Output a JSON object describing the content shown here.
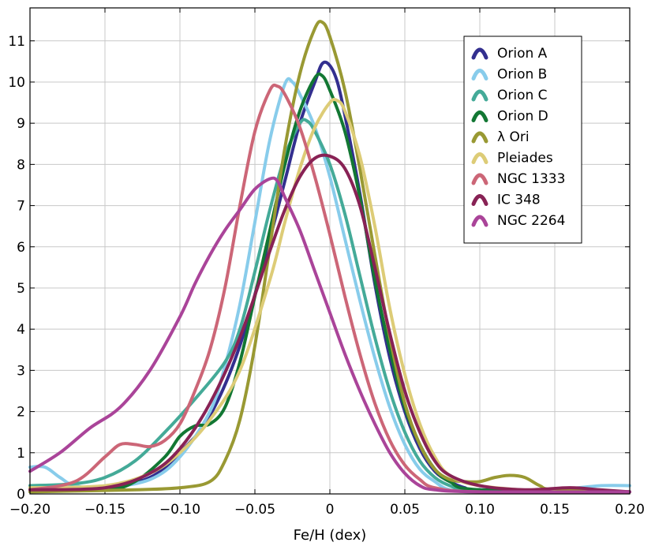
{
  "chart_data": {
    "type": "line",
    "title": "",
    "xlabel": "Fe/H (dex)",
    "ylabel": "",
    "xlim": [
      -0.2,
      0.2
    ],
    "ylim": [
      0,
      11.8
    ],
    "grid": true,
    "legend_position": "top-right",
    "x_ticks": [
      -0.2,
      -0.15,
      -0.1,
      -0.05,
      0,
      0.05,
      0.1,
      0.15,
      0.2
    ],
    "x_tick_labels": [
      "−0.20",
      "−0.15",
      "−0.10",
      "−0.05",
      "0",
      "0.05",
      "0.10",
      "0.15",
      "0.20"
    ],
    "y_ticks": [
      0,
      1,
      2,
      3,
      4,
      5,
      6,
      7,
      8,
      9,
      10,
      11
    ],
    "y_tick_labels": [
      "0",
      "1",
      "2",
      "3",
      "4",
      "5",
      "6",
      "7",
      "8",
      "9",
      "10",
      "11"
    ],
    "series": [
      {
        "name": "Orion A",
        "color": "#332f8f",
        "points": [
          [
            -0.2,
            0.15
          ],
          [
            -0.15,
            0.15
          ],
          [
            -0.12,
            0.4
          ],
          [
            -0.1,
            1.0
          ],
          [
            -0.08,
            1.9
          ],
          [
            -0.06,
            3.6
          ],
          [
            -0.04,
            6.2
          ],
          [
            -0.03,
            7.6
          ],
          [
            -0.02,
            9.0
          ],
          [
            -0.01,
            10.0
          ],
          [
            -0.005,
            10.45
          ],
          [
            0,
            10.4
          ],
          [
            0.005,
            10.0
          ],
          [
            0.01,
            9.2
          ],
          [
            0.02,
            7.3
          ],
          [
            0.03,
            5.1
          ],
          [
            0.04,
            3.3
          ],
          [
            0.05,
            2.0
          ],
          [
            0.06,
            1.1
          ],
          [
            0.07,
            0.55
          ],
          [
            0.08,
            0.3
          ],
          [
            0.09,
            0.15
          ],
          [
            0.1,
            0.1
          ],
          [
            0.2,
            0.05
          ]
        ]
      },
      {
        "name": "Orion B",
        "color": "#88cceb",
        "points": [
          [
            -0.2,
            0.65
          ],
          [
            -0.19,
            0.65
          ],
          [
            -0.18,
            0.4
          ],
          [
            -0.17,
            0.2
          ],
          [
            -0.15,
            0.15
          ],
          [
            -0.12,
            0.35
          ],
          [
            -0.1,
            0.9
          ],
          [
            -0.08,
            2.0
          ],
          [
            -0.07,
            3.1
          ],
          [
            -0.06,
            4.6
          ],
          [
            -0.05,
            6.6
          ],
          [
            -0.04,
            8.6
          ],
          [
            -0.03,
            9.95
          ],
          [
            -0.025,
            10.0
          ],
          [
            -0.02,
            9.7
          ],
          [
            -0.01,
            8.9
          ],
          [
            0,
            7.7
          ],
          [
            0.01,
            6.2
          ],
          [
            0.02,
            4.7
          ],
          [
            0.03,
            3.3
          ],
          [
            0.04,
            2.1
          ],
          [
            0.05,
            1.2
          ],
          [
            0.06,
            0.6
          ],
          [
            0.07,
            0.3
          ],
          [
            0.08,
            0.1
          ],
          [
            0.1,
            0.05
          ],
          [
            0.15,
            0.1
          ],
          [
            0.18,
            0.2
          ],
          [
            0.2,
            0.2
          ]
        ]
      },
      {
        "name": "Orion C",
        "color": "#44aa98",
        "points": [
          [
            -0.2,
            0.2
          ],
          [
            -0.17,
            0.25
          ],
          [
            -0.15,
            0.4
          ],
          [
            -0.13,
            0.8
          ],
          [
            -0.11,
            1.5
          ],
          [
            -0.09,
            2.3
          ],
          [
            -0.07,
            3.2
          ],
          [
            -0.06,
            4.0
          ],
          [
            -0.05,
            5.4
          ],
          [
            -0.04,
            6.9
          ],
          [
            -0.03,
            8.2
          ],
          [
            -0.02,
            9.0
          ],
          [
            -0.015,
            9.05
          ],
          [
            -0.01,
            8.8
          ],
          [
            0,
            8.0
          ],
          [
            0.01,
            6.8
          ],
          [
            0.02,
            5.3
          ],
          [
            0.03,
            3.8
          ],
          [
            0.04,
            2.5
          ],
          [
            0.05,
            1.5
          ],
          [
            0.06,
            0.8
          ],
          [
            0.07,
            0.4
          ],
          [
            0.08,
            0.2
          ],
          [
            0.09,
            0.1
          ],
          [
            0.12,
            0.05
          ],
          [
            0.2,
            0.05
          ]
        ]
      },
      {
        "name": "Orion D",
        "color": "#127733",
        "points": [
          [
            -0.2,
            0.1
          ],
          [
            -0.15,
            0.1
          ],
          [
            -0.13,
            0.3
          ],
          [
            -0.11,
            0.9
          ],
          [
            -0.1,
            1.4
          ],
          [
            -0.09,
            1.65
          ],
          [
            -0.08,
            1.7
          ],
          [
            -0.07,
            2.1
          ],
          [
            -0.06,
            3.2
          ],
          [
            -0.05,
            4.8
          ],
          [
            -0.04,
            6.4
          ],
          [
            -0.03,
            8.0
          ],
          [
            -0.02,
            9.3
          ],
          [
            -0.01,
            10.1
          ],
          [
            -0.005,
            10.15
          ],
          [
            0,
            9.8
          ],
          [
            0.01,
            8.8
          ],
          [
            0.02,
            7.2
          ],
          [
            0.03,
            5.2
          ],
          [
            0.04,
            3.5
          ],
          [
            0.05,
            2.1
          ],
          [
            0.06,
            1.2
          ],
          [
            0.07,
            0.6
          ],
          [
            0.08,
            0.3
          ],
          [
            0.1,
            0.1
          ],
          [
            0.2,
            0.05
          ]
        ]
      },
      {
        "name": "λ Ori",
        "color": "#999933",
        "points": [
          [
            -0.2,
            0.05
          ],
          [
            -0.13,
            0.1
          ],
          [
            -0.1,
            0.15
          ],
          [
            -0.08,
            0.3
          ],
          [
            -0.07,
            0.8
          ],
          [
            -0.06,
            1.8
          ],
          [
            -0.05,
            3.6
          ],
          [
            -0.04,
            6.0
          ],
          [
            -0.03,
            8.4
          ],
          [
            -0.02,
            10.2
          ],
          [
            -0.01,
            11.3
          ],
          [
            -0.005,
            11.45
          ],
          [
            0,
            11.1
          ],
          [
            0.01,
            9.8
          ],
          [
            0.02,
            7.9
          ],
          [
            0.03,
            5.8
          ],
          [
            0.04,
            3.8
          ],
          [
            0.05,
            2.2
          ],
          [
            0.06,
            1.2
          ],
          [
            0.07,
            0.6
          ],
          [
            0.08,
            0.35
          ],
          [
            0.09,
            0.3
          ],
          [
            0.1,
            0.3
          ],
          [
            0.11,
            0.4
          ],
          [
            0.12,
            0.45
          ],
          [
            0.13,
            0.4
          ],
          [
            0.14,
            0.2
          ],
          [
            0.15,
            0.1
          ],
          [
            0.2,
            0.05
          ]
        ]
      },
      {
        "name": "Pleiades",
        "color": "#ddcc77",
        "points": [
          [
            -0.2,
            0.15
          ],
          [
            -0.15,
            0.2
          ],
          [
            -0.12,
            0.5
          ],
          [
            -0.1,
            1.0
          ],
          [
            -0.08,
            1.8
          ],
          [
            -0.06,
            3.0
          ],
          [
            -0.04,
            5.2
          ],
          [
            -0.03,
            6.6
          ],
          [
            -0.02,
            7.9
          ],
          [
            -0.01,
            8.9
          ],
          [
            0,
            9.5
          ],
          [
            0.005,
            9.55
          ],
          [
            0.01,
            9.3
          ],
          [
            0.02,
            8.2
          ],
          [
            0.03,
            6.5
          ],
          [
            0.04,
            4.5
          ],
          [
            0.05,
            2.9
          ],
          [
            0.06,
            1.7
          ],
          [
            0.07,
            0.9
          ],
          [
            0.08,
            0.45
          ],
          [
            0.1,
            0.2
          ],
          [
            0.15,
            0.05
          ],
          [
            0.2,
            0.05
          ]
        ]
      },
      {
        "name": "NGC 1333",
        "color": "#cc6677",
        "points": [
          [
            -0.2,
            0.1
          ],
          [
            -0.17,
            0.3
          ],
          [
            -0.15,
            0.9
          ],
          [
            -0.14,
            1.2
          ],
          [
            -0.13,
            1.2
          ],
          [
            -0.12,
            1.15
          ],
          [
            -0.11,
            1.3
          ],
          [
            -0.1,
            1.7
          ],
          [
            -0.09,
            2.5
          ],
          [
            -0.08,
            3.5
          ],
          [
            -0.07,
            5.0
          ],
          [
            -0.06,
            7.0
          ],
          [
            -0.05,
            8.8
          ],
          [
            -0.04,
            9.8
          ],
          [
            -0.035,
            9.9
          ],
          [
            -0.03,
            9.7
          ],
          [
            -0.02,
            8.9
          ],
          [
            -0.01,
            7.7
          ],
          [
            0,
            6.3
          ],
          [
            0.01,
            4.8
          ],
          [
            0.02,
            3.4
          ],
          [
            0.03,
            2.2
          ],
          [
            0.04,
            1.3
          ],
          [
            0.05,
            0.7
          ],
          [
            0.06,
            0.35
          ],
          [
            0.07,
            0.15
          ],
          [
            0.1,
            0.05
          ],
          [
            0.2,
            0.05
          ]
        ]
      },
      {
        "name": "IC 348",
        "color": "#882255",
        "points": [
          [
            -0.2,
            0.1
          ],
          [
            -0.15,
            0.15
          ],
          [
            -0.12,
            0.5
          ],
          [
            -0.1,
            1.1
          ],
          [
            -0.08,
            2.2
          ],
          [
            -0.06,
            3.8
          ],
          [
            -0.04,
            5.9
          ],
          [
            -0.03,
            6.9
          ],
          [
            -0.02,
            7.7
          ],
          [
            -0.01,
            8.15
          ],
          [
            0,
            8.2
          ],
          [
            0.01,
            7.9
          ],
          [
            0.02,
            7.0
          ],
          [
            0.03,
            5.5
          ],
          [
            0.04,
            3.9
          ],
          [
            0.05,
            2.5
          ],
          [
            0.06,
            1.5
          ],
          [
            0.07,
            0.8
          ],
          [
            0.08,
            0.45
          ],
          [
            0.1,
            0.2
          ],
          [
            0.13,
            0.1
          ],
          [
            0.16,
            0.15
          ],
          [
            0.18,
            0.1
          ],
          [
            0.2,
            0.05
          ]
        ]
      },
      {
        "name": "NGC 2264",
        "color": "#aa4499",
        "points": [
          [
            -0.2,
            0.55
          ],
          [
            -0.18,
            1.0
          ],
          [
            -0.16,
            1.6
          ],
          [
            -0.14,
            2.1
          ],
          [
            -0.12,
            3.0
          ],
          [
            -0.1,
            4.3
          ],
          [
            -0.09,
            5.1
          ],
          [
            -0.08,
            5.8
          ],
          [
            -0.07,
            6.4
          ],
          [
            -0.06,
            6.9
          ],
          [
            -0.05,
            7.4
          ],
          [
            -0.04,
            7.65
          ],
          [
            -0.035,
            7.6
          ],
          [
            -0.03,
            7.2
          ],
          [
            -0.02,
            6.4
          ],
          [
            -0.01,
            5.4
          ],
          [
            0,
            4.4
          ],
          [
            0.01,
            3.4
          ],
          [
            0.02,
            2.5
          ],
          [
            0.03,
            1.7
          ],
          [
            0.04,
            1.0
          ],
          [
            0.05,
            0.5
          ],
          [
            0.06,
            0.2
          ],
          [
            0.07,
            0.1
          ],
          [
            0.1,
            0.05
          ],
          [
            0.2,
            0.05
          ]
        ]
      }
    ]
  }
}
